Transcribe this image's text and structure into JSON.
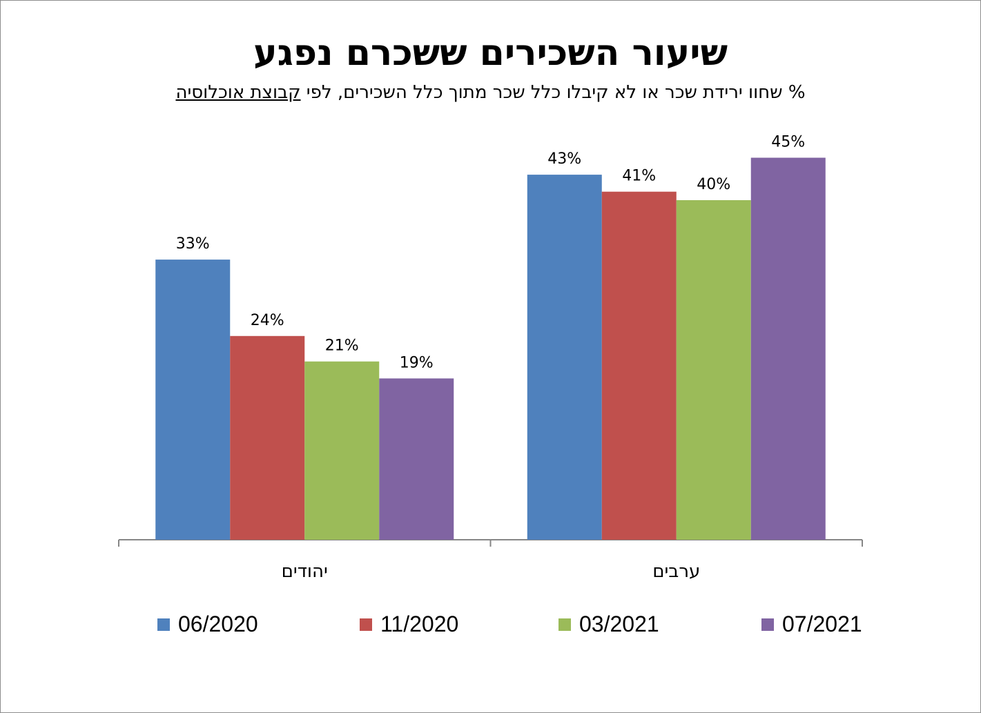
{
  "title": "שיעור השכירים ששכרם נפגע",
  "subtitle": {
    "main": "% שחוו ירידת שכר או לא קיבלו כלל שכר מתוך כלל השכירים, לפי ",
    "emphasis": "קבוצת אוכלוסיה"
  },
  "colors": {
    "06/2020": "#4F81BD",
    "11/2020": "#C0504D",
    "03/2021": "#9BBB59",
    "07/2021": "#8064A2"
  },
  "chart_data": {
    "type": "bar",
    "categories": [
      "יהודים",
      "ערבים"
    ],
    "series": [
      {
        "name": "06/2020",
        "values": [
          33,
          43
        ],
        "labels": [
          "33%",
          "43%"
        ]
      },
      {
        "name": "11/2020",
        "values": [
          24,
          41
        ],
        "labels": [
          "24%",
          "41%"
        ]
      },
      {
        "name": "03/2021",
        "values": [
          21,
          40
        ],
        "labels": [
          "21%",
          "40%"
        ]
      },
      {
        "name": "07/2021",
        "values": [
          19,
          45
        ],
        "labels": [
          "19%",
          "45%"
        ]
      }
    ],
    "ylim": [
      0,
      50
    ],
    "grid": false,
    "legend": "bottom"
  }
}
